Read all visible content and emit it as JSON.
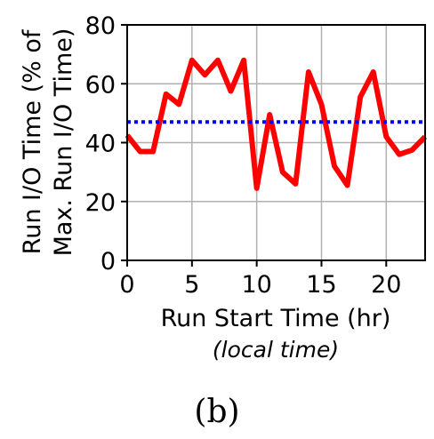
{
  "chart_data": {
    "type": "line",
    "xlabel": "Run Start Time (hr)",
    "xlabel_sub": "(local time)",
    "ylabel_line1": "Run I/O Time (% of",
    "ylabel_line2": "Max. Run I/O Time)",
    "panel_label": "(b)",
    "xlim": [
      0,
      23
    ],
    "ylim": [
      0,
      80
    ],
    "xticks": [
      0,
      5,
      10,
      15,
      20
    ],
    "yticks": [
      0,
      20,
      40,
      60,
      80
    ],
    "grid": true,
    "series": [
      {
        "color": "#ff0000",
        "style": "solid",
        "x": [
          0,
          1,
          2,
          3,
          4,
          5,
          6,
          7,
          8,
          9,
          10,
          11,
          12,
          13,
          14,
          15,
          16,
          17,
          18,
          19,
          20,
          21,
          22,
          23
        ],
        "y": [
          42.5,
          37,
          37,
          56.5,
          53,
          68,
          63,
          68,
          57.5,
          68,
          24.5,
          49.5,
          30,
          26,
          64,
          53,
          32,
          25.5,
          55.5,
          64,
          42,
          36,
          37.5,
          42
        ]
      },
      {
        "color": "#0000ff",
        "style": "dotted",
        "x": [
          0,
          23
        ],
        "y": [
          47,
          47
        ]
      }
    ]
  }
}
